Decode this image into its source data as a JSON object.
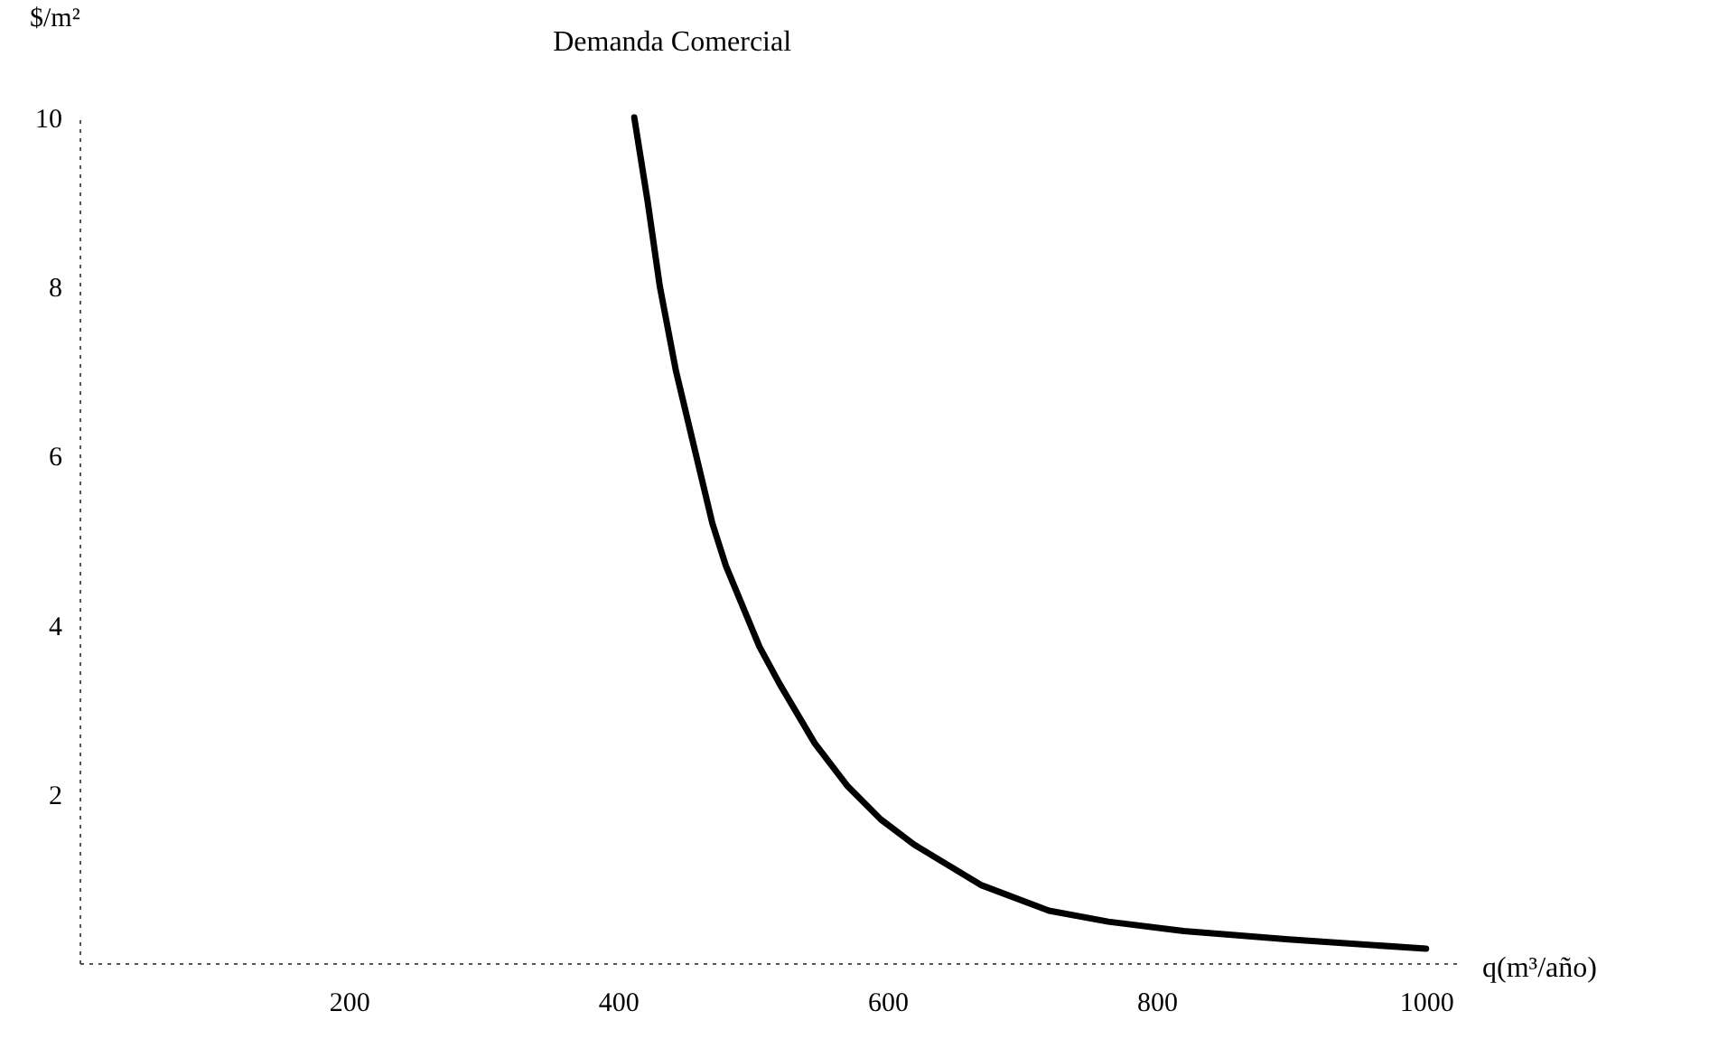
{
  "chart_data": {
    "type": "line",
    "xlabel": "q(m³/año)",
    "ylabel": "$/m²",
    "x": [
      412,
      422,
      431,
      443,
      458,
      470,
      480,
      505,
      520,
      546,
      570,
      595,
      620,
      670,
      720,
      764,
      820,
      898,
      1000
    ],
    "series": [
      {
        "name": "Demanda Comercial",
        "color": "#000000",
        "values": [
          10,
          9,
          8,
          7,
          6,
          5.2,
          4.7,
          3.74,
          3.3,
          2.6,
          2.1,
          1.7,
          1.4,
          0.92,
          0.62,
          0.49,
          0.38,
          0.28,
          0.17
        ]
      }
    ],
    "xlim": [
      0,
      1025
    ],
    "ylim": [
      0,
      10
    ],
    "xticks": [
      200,
      400,
      600,
      800,
      1000
    ],
    "yticks": [
      2,
      4,
      6,
      8,
      10
    ],
    "grid": false,
    "marker": "none",
    "line_style": "solid"
  }
}
